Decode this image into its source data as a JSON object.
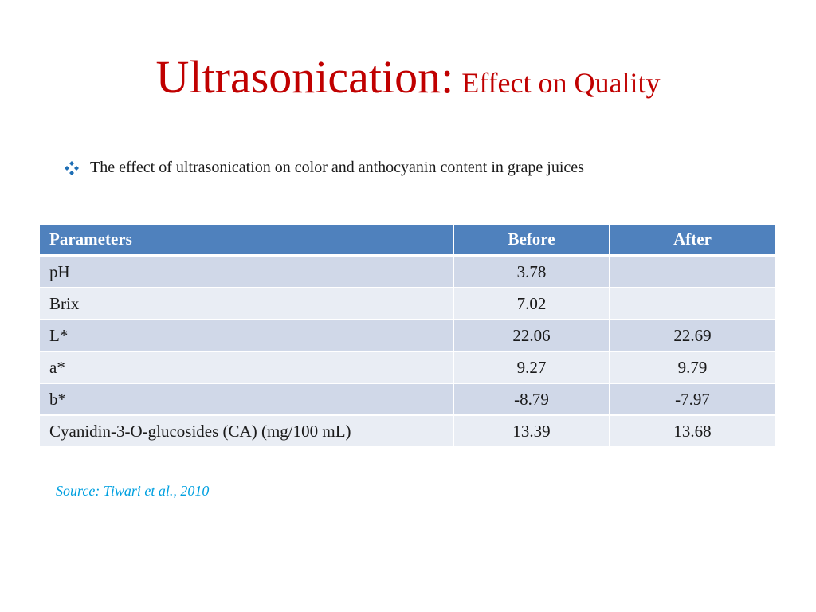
{
  "slide": {
    "title_main": "Ultrasonication:",
    "title_sub": "Effect on Quality",
    "bullet_icon": "diamond-bullet-icon",
    "bullet_text": "The effect of ultrasonication on color and anthocyanin content in grape juices",
    "accent_color": "#c00000",
    "header_color": "#4f81bd"
  },
  "table": {
    "headers": [
      "Parameters",
      "Before",
      "After"
    ],
    "rows": [
      [
        "pH",
        "3.78",
        ""
      ],
      [
        "Brix",
        "7.02",
        ""
      ],
      [
        "L*",
        "22.06",
        "22.69"
      ],
      [
        "a*",
        "9.27",
        "9.79"
      ],
      [
        "b*",
        "-8.79",
        "-7.97"
      ],
      [
        "Cyanidin-3-O-glucosides (CA) (mg/100 mL)",
        "13.39",
        "13.68"
      ]
    ]
  },
  "source": {
    "text": "Source: Tiwari et al., 2010"
  }
}
